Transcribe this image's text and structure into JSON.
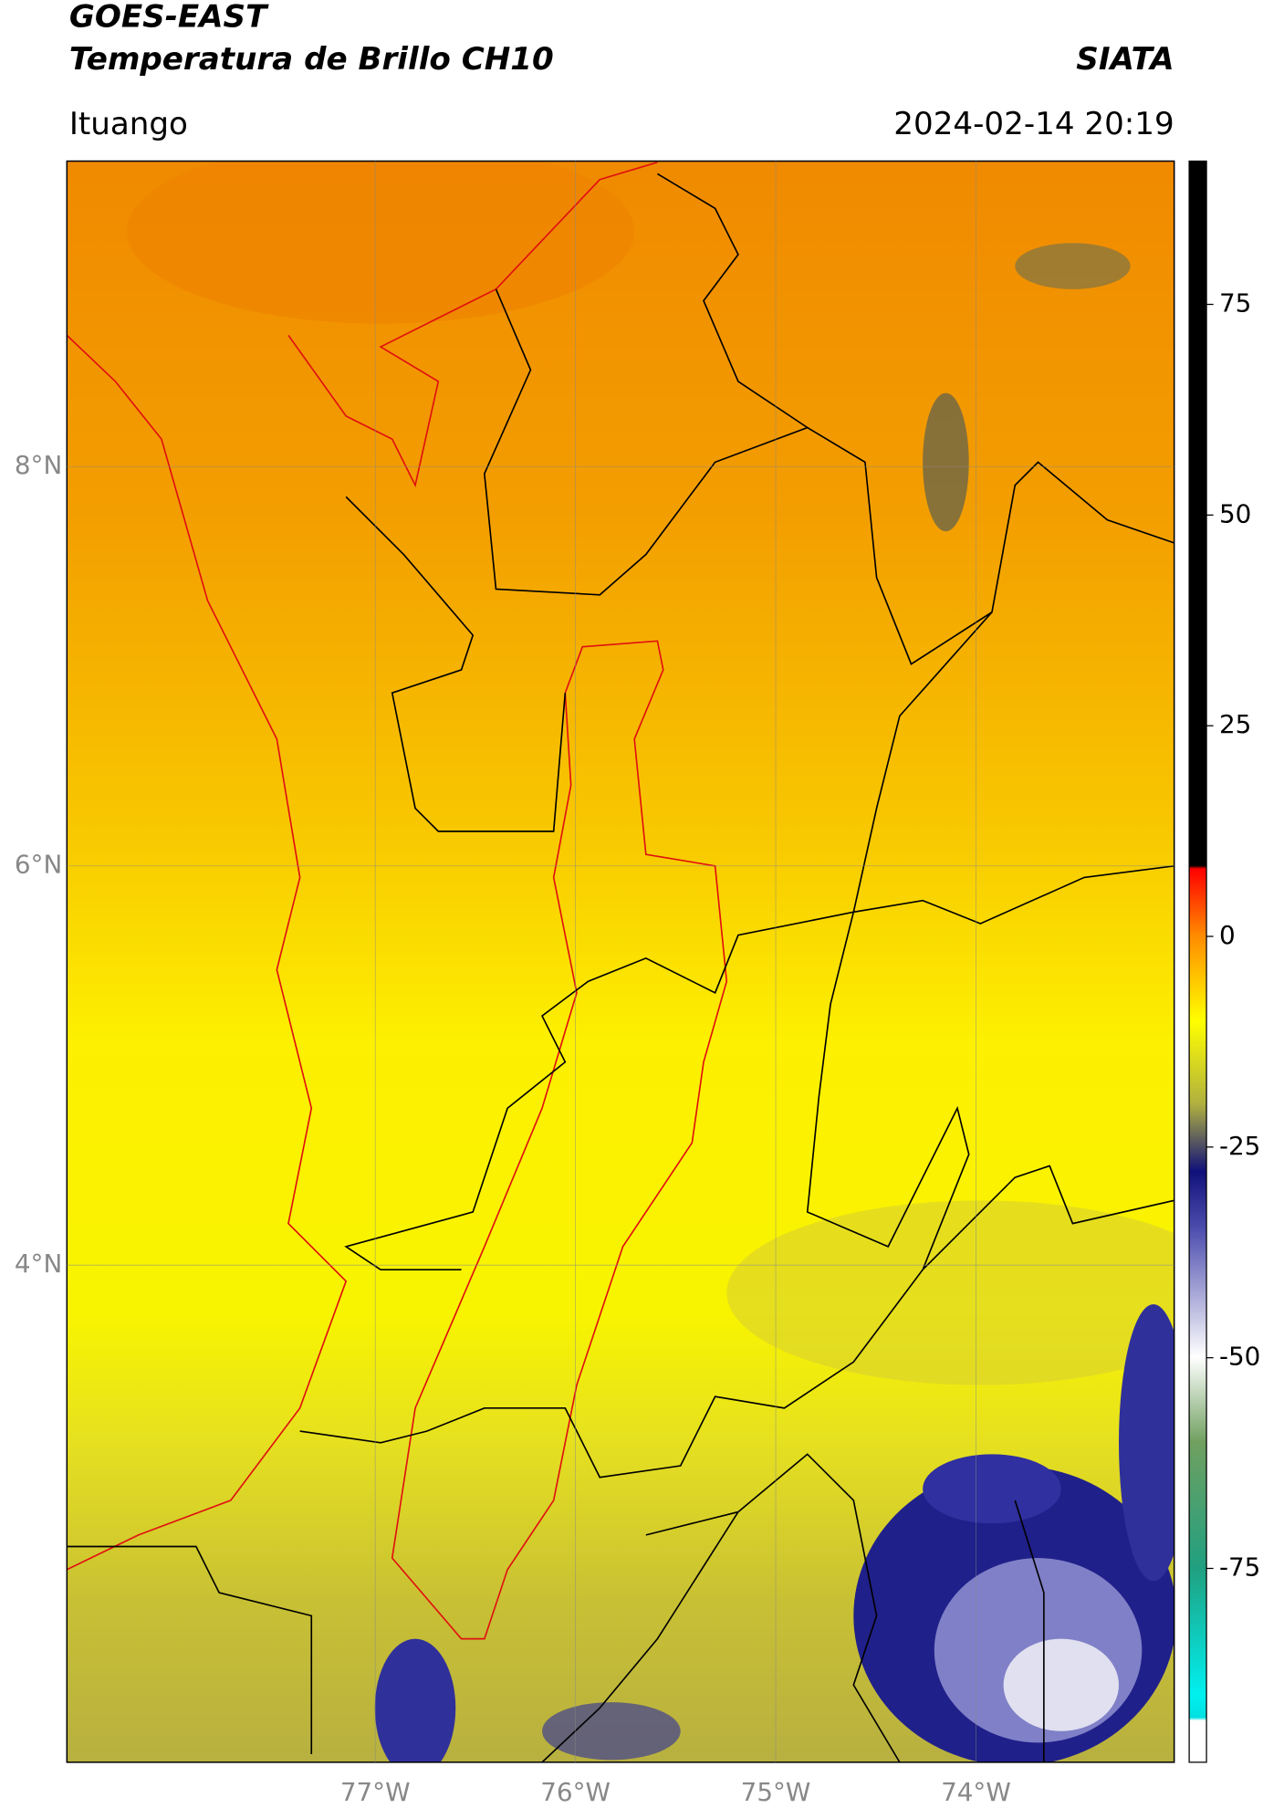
{
  "header": {
    "title": "GOES-EAST",
    "subtitle": "Temperatura de Brillo CH10",
    "source": "SIATA",
    "location": "Ituango",
    "timestamp": "2024-02-14 20:19"
  },
  "map": {
    "xlim": [
      -78.54,
      -73.01
    ],
    "ylim": [
      1.51,
      9.53
    ],
    "xticks": [
      {
        "value": -77,
        "label": "77°W"
      },
      {
        "value": -76,
        "label": "76°W"
      },
      {
        "value": -75,
        "label": "75°W"
      },
      {
        "value": -74,
        "label": "74°W"
      }
    ],
    "yticks": [
      {
        "value": 8,
        "label": "8°N"
      },
      {
        "value": 6,
        "label": "6°N"
      },
      {
        "value": 4,
        "label": "4°N"
      }
    ],
    "grid": true
  },
  "colorbar": {
    "clim": [
      -98,
      92
    ],
    "ticks": [
      75,
      50,
      25,
      0,
      -25,
      -50,
      -75
    ]
  }
}
